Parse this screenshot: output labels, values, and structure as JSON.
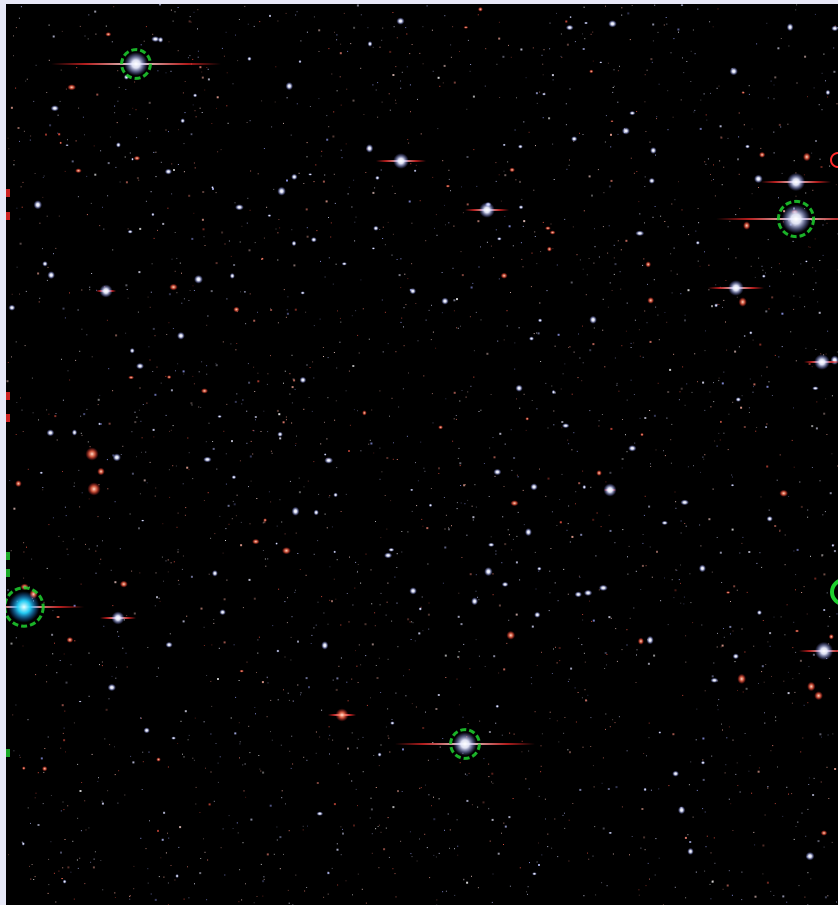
{
  "image": {
    "kind": "astronomical deep-field image",
    "colors": {
      "frame": "#e7e8f7",
      "background": "#000000",
      "star_core": "#ffffff",
      "star_halo": "#a9b4ff",
      "diffraction_spike": "#ff2a2a",
      "saturation_ring": "#1fd12f",
      "cyan_core": "#25d6ff",
      "galaxy_red": "#ff6a4a"
    }
  }
}
